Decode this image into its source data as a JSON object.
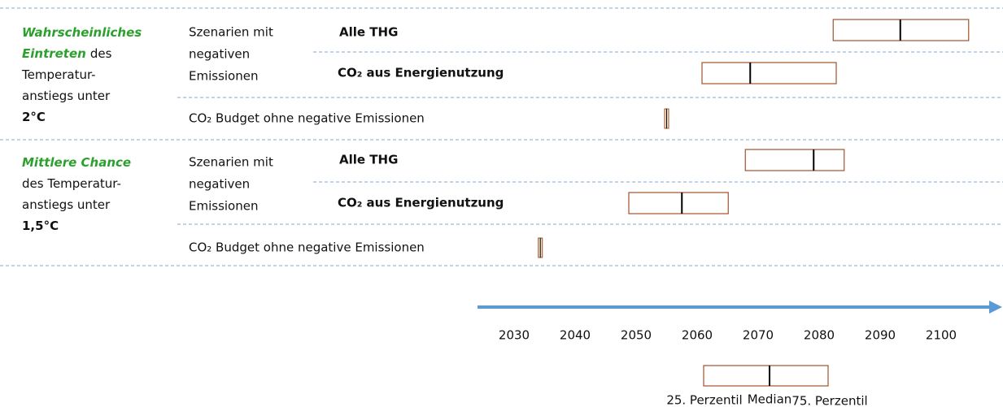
{
  "groups": [
    {
      "label_lines": [
        [
          {
            "text": "Wahrscheinliches",
            "style": "chance"
          }
        ],
        [
          {
            "text": "Eintreten",
            "style": "chance"
          },
          {
            "text": "des",
            "style": "normal"
          }
        ],
        [
          {
            "text": "Temperatur-",
            "style": "normal"
          }
        ],
        [
          {
            "text": "anstiegs unter",
            "style": "normal"
          }
        ],
        [
          {
            "text": "2°C",
            "style": "bold"
          }
        ]
      ],
      "scenario_lines": [
        "Szenarien mit",
        "negativen",
        "Emissionen"
      ],
      "rows": [
        {
          "label": "Alle THG",
          "color": "#2e5597",
          "p25": 2082.3,
          "median": 2093.3,
          "p75": 2104.5
        },
        {
          "label": "CO₂ aus Energienutzung",
          "color": "#9c4a1a",
          "p25": 2060.8,
          "median": 2068.7,
          "p75": 2082.8
        },
        {
          "label": "CO₂ Budget ohne negative Emissionen",
          "color": "#111111",
          "value": 2055
        }
      ]
    },
    {
      "label_lines": [
        [
          {
            "text": "Mittlere Chance",
            "style": "chance"
          }
        ],
        [
          {
            "text": "des Temperatur-",
            "style": "normal"
          }
        ],
        [
          {
            "text": "anstiegs unter",
            "style": "normal"
          }
        ],
        [
          {
            "text": "1,5°C",
            "style": "bold"
          }
        ]
      ],
      "scenario_lines": [
        "Szenarien mit",
        "negativen",
        "Emissionen"
      ],
      "rows": [
        {
          "label": "Alle THG",
          "color": "#2e5597",
          "p25": 2067.9,
          "median": 2079.1,
          "p75": 2084.1
        },
        {
          "label": "CO₂ aus Energienutzung",
          "color": "#9c4a1a",
          "p25": 2048.8,
          "median": 2057.5,
          "p75": 2065.1
        },
        {
          "label": "CO₂ Budget ohne negative Emissionen",
          "color": "#111111",
          "value": 2034.3
        }
      ]
    }
  ],
  "axis": {
    "xlim": [
      2024,
      2110
    ],
    "xticks": [
      2030,
      2040,
      2050,
      2060,
      2070,
      2080,
      2090,
      2100
    ],
    "color": "#5b9bd5"
  },
  "box_color": "#a0522d",
  "legend": {
    "p25": "25. Perzentil",
    "median": "Median",
    "p75": "75. Perzentil"
  }
}
